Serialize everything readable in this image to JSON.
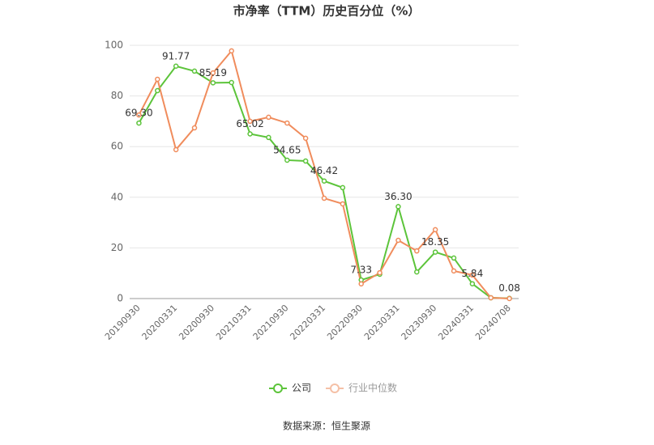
{
  "chart_data": {
    "type": "line",
    "title": "市净率（TTM）历史百分位（%）",
    "categories": [
      "20190930",
      null,
      "20200331",
      null,
      "20200930",
      null,
      "20210331",
      null,
      "20210930",
      null,
      "20220331",
      null,
      "20220930",
      null,
      "20230331",
      null,
      "20230930",
      null,
      "20240331",
      null,
      "20240708"
    ],
    "series": [
      {
        "name": "公司",
        "color": "#5cc43a",
        "values": [
          69.3,
          82.1,
          91.77,
          89.8,
          85.19,
          85.3,
          65.02,
          63.6,
          54.65,
          54.3,
          46.42,
          43.8,
          7.33,
          9.6,
          36.3,
          10.5,
          18.35,
          16.0,
          5.84,
          0.3,
          0.08
        ],
        "value_labels": [
          "69.30",
          null,
          "91.77",
          null,
          "85.19",
          null,
          "65.02",
          null,
          "54.65",
          null,
          "46.42",
          null,
          "7.33",
          null,
          "36.30",
          null,
          "18.35",
          null,
          "5.84",
          null,
          "0.08"
        ]
      },
      {
        "name": "行业中位数",
        "color": "#f08c5c",
        "values": [
          72.5,
          86.6,
          58.8,
          67.4,
          89.1,
          97.8,
          70.0,
          71.6,
          69.3,
          63.3,
          39.6,
          37.4,
          5.8,
          10.2,
          23.0,
          18.8,
          27.2,
          10.9,
          9.3,
          0.3,
          0.0
        ]
      }
    ],
    "ylim": [
      0,
      100
    ],
    "yticks": [
      0,
      20,
      40,
      60,
      80,
      100
    ],
    "grid": true,
    "source": "数据来源：恒生聚源"
  }
}
